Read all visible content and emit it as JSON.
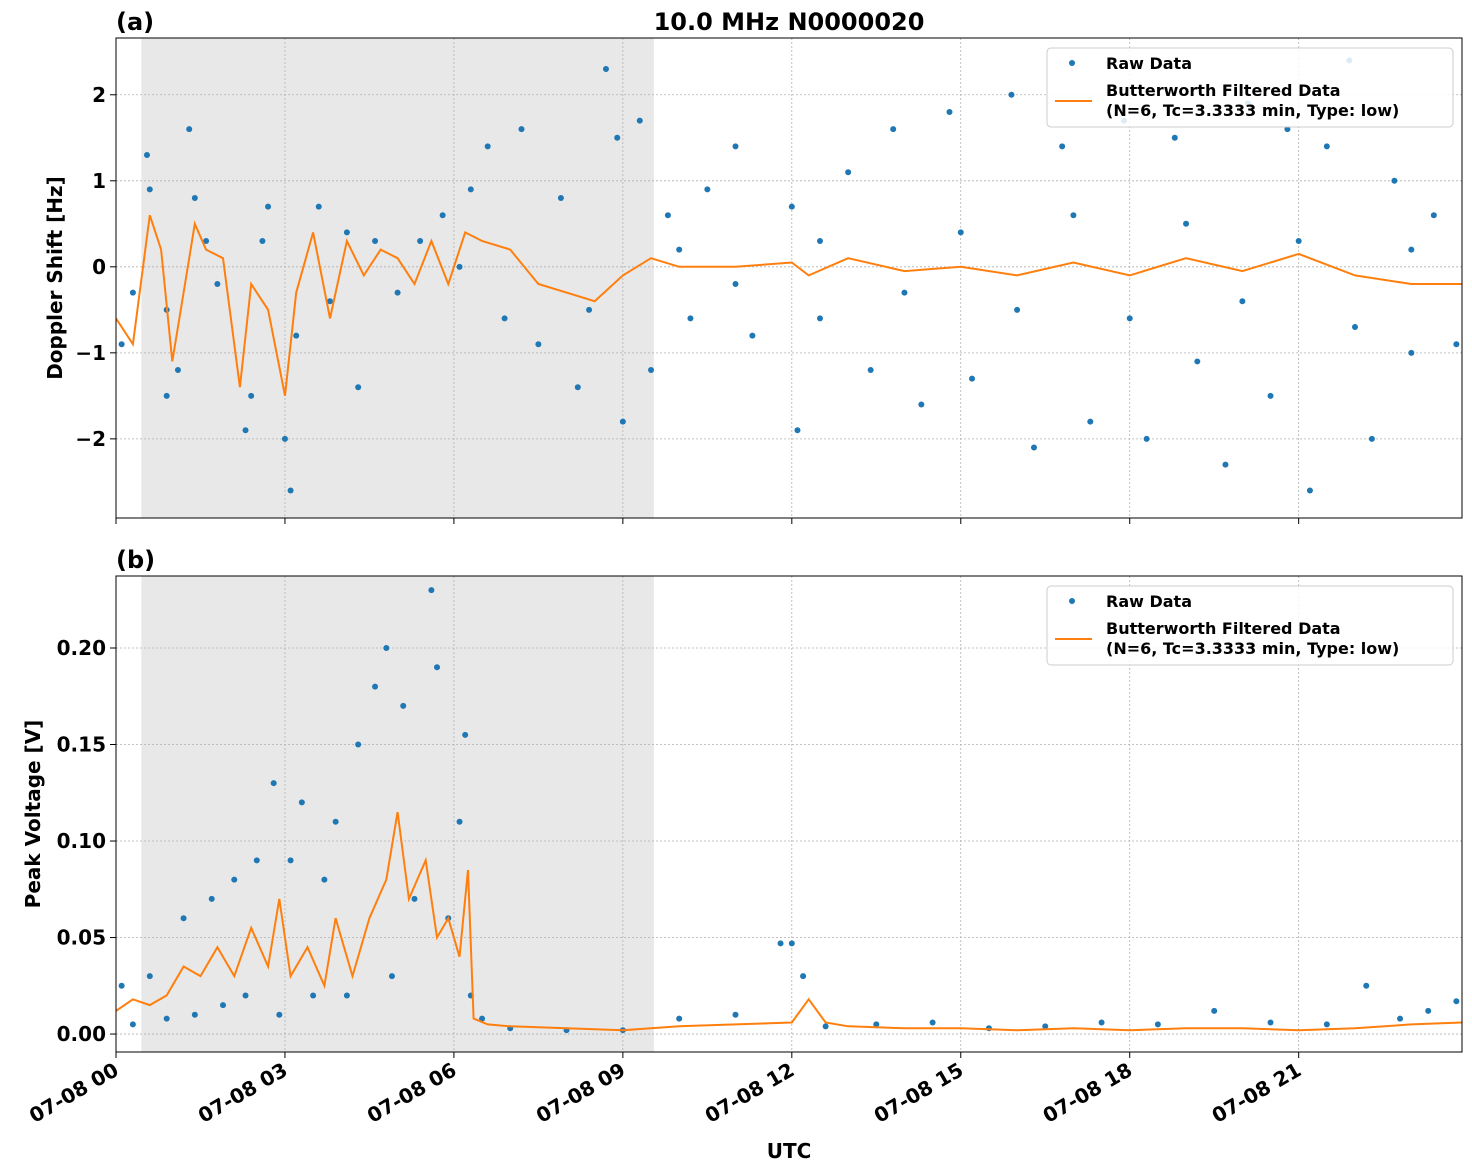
{
  "chart_data": [
    {
      "type": "scatter",
      "panel_label": "(a)",
      "title": "10.0 MHz N0000020",
      "ylabel": "Doppler Shift [Hz]",
      "xlim": [
        0,
        23.9
      ],
      "xticks": [
        0,
        3,
        6,
        9,
        12,
        15,
        18,
        21
      ],
      "ylim": [
        -2.92,
        2.66
      ],
      "yticks": [
        {
          "value": -2,
          "label": "−2"
        },
        {
          "value": -1,
          "label": "−1"
        },
        0,
        1,
        2
      ],
      "grid": true,
      "shade": [
        0.45,
        9.55
      ],
      "legend": "upper right",
      "series": [
        {
          "name": "Raw Data",
          "mode": "markers",
          "color": "#1f77b4",
          "x": [
            0.1,
            0.3,
            0.55,
            0.6,
            0.9,
            0.9,
            1.1,
            1.3,
            1.4,
            1.6,
            1.8,
            2.3,
            2.4,
            2.6,
            2.7,
            3.0,
            3.1,
            3.2,
            3.6,
            3.8,
            4.1,
            4.3,
            4.6,
            5.0,
            5.4,
            5.8,
            6.1,
            6.3,
            6.6,
            6.9,
            7.2,
            7.5,
            7.9,
            8.2,
            8.4,
            8.7,
            8.9,
            9.0,
            9.3,
            9.5,
            9.8,
            10.2,
            10.5,
            11.0,
            11.3,
            12.0,
            12.1,
            12.5,
            13.0,
            13.4,
            13.8,
            14.3,
            14.8,
            15.2,
            15.9,
            16.3,
            16.8,
            17.3,
            17.9,
            18.3,
            18.8,
            19.2,
            19.7,
            20.1,
            20.5,
            20.8,
            21.2,
            21.5,
            21.9,
            22.3,
            22.7,
            23.0,
            23.4,
            23.8,
            10,
            11,
            12.5,
            14,
            15,
            16,
            17,
            18,
            19,
            20,
            21,
            22,
            23
          ],
          "values": [
            -0.9,
            -0.3,
            1.3,
            0.9,
            -0.5,
            -1.5,
            -1.2,
            1.6,
            0.8,
            0.3,
            -0.2,
            -1.9,
            -1.5,
            0.3,
            0.7,
            -2.0,
            -2.6,
            -0.8,
            0.7,
            -0.4,
            0.4,
            -1.4,
            0.3,
            -0.3,
            0.3,
            0.6,
            0.0,
            0.9,
            1.4,
            -0.6,
            1.6,
            -0.9,
            0.8,
            -1.4,
            -0.5,
            2.3,
            1.5,
            -1.8,
            1.7,
            -1.2,
            0.6,
            -0.6,
            0.9,
            1.4,
            -0.8,
            0.7,
            -1.9,
            -0.6,
            1.1,
            -1.2,
            1.6,
            -1.6,
            1.8,
            -1.3,
            2.0,
            -2.1,
            1.4,
            -1.8,
            1.7,
            -2.0,
            1.5,
            -1.1,
            -2.3,
            1.9,
            -1.5,
            1.6,
            -2.6,
            1.4,
            2.4,
            -2.0,
            1.0,
            -1.0,
            0.6,
            -0.9,
            0.2,
            -0.2,
            0.3,
            -0.3,
            0.4,
            -0.5,
            0.6,
            -0.6,
            0.5,
            -0.4,
            0.3,
            -0.7,
            0.2
          ]
        },
        {
          "name": "Butterworth Filtered Data\n(N=6, Tc=3.3333 min, Type: low)",
          "mode": "line",
          "color": "#ff7f0e",
          "x": [
            0,
            0.3,
            0.6,
            0.8,
            1.0,
            1.2,
            1.4,
            1.6,
            1.9,
            2.2,
            2.4,
            2.7,
            3.0,
            3.2,
            3.5,
            3.8,
            4.1,
            4.4,
            4.7,
            5.0,
            5.3,
            5.6,
            5.9,
            6.2,
            6.5,
            7.0,
            7.5,
            8.0,
            8.5,
            9.0,
            9.5,
            10,
            11,
            12,
            12.3,
            13,
            14,
            15,
            16,
            17,
            18,
            19,
            20,
            21,
            22,
            23,
            23.9
          ],
          "values": [
            -0.6,
            -0.9,
            0.6,
            0.2,
            -1.1,
            -0.3,
            0.5,
            0.2,
            0.1,
            -1.4,
            -0.2,
            -0.5,
            -1.5,
            -0.3,
            0.4,
            -0.6,
            0.3,
            -0.1,
            0.2,
            0.1,
            -0.2,
            0.3,
            -0.2,
            0.4,
            0.3,
            0.2,
            -0.2,
            -0.3,
            -0.4,
            -0.1,
            0.1,
            0.0,
            0.0,
            0.05,
            -0.1,
            0.1,
            -0.05,
            0.0,
            -0.1,
            0.05,
            -0.1,
            0.1,
            -0.05,
            0.15,
            -0.1,
            -0.2,
            -0.2
          ]
        }
      ]
    },
    {
      "type": "scatter",
      "panel_label": "(b)",
      "ylabel": "Peak Voltage [V]",
      "xlabel": "UTC",
      "xlim": [
        0,
        23.9
      ],
      "xticks": [
        {
          "value": 0,
          "label": "07-08 00"
        },
        {
          "value": 3,
          "label": "07-08 03"
        },
        {
          "value": 6,
          "label": "07-08 06"
        },
        {
          "value": 9,
          "label": "07-08 09"
        },
        {
          "value": 12,
          "label": "07-08 12"
        },
        {
          "value": 15,
          "label": "07-08 15"
        },
        {
          "value": 18,
          "label": "07-08 18"
        },
        {
          "value": 21,
          "label": "07-08 21"
        }
      ],
      "ylim": [
        -0.0093,
        0.2373
      ],
      "yticks": [
        {
          "value": 0,
          "label": "0.00"
        },
        {
          "value": 0.05,
          "label": "0.05"
        },
        {
          "value": 0.1,
          "label": "0.10"
        },
        {
          "value": 0.15,
          "label": "0.15"
        },
        {
          "value": 0.2,
          "label": "0.20"
        }
      ],
      "grid": true,
      "shade": [
        0.45,
        9.55
      ],
      "legend": "upper right",
      "series": [
        {
          "name": "Raw Data",
          "mode": "markers",
          "color": "#1f77b4",
          "x": [
            0.1,
            0.3,
            0.6,
            0.9,
            1.2,
            1.4,
            1.7,
            1.9,
            2.1,
            2.3,
            2.5,
            2.8,
            2.9,
            3.1,
            3.3,
            3.5,
            3.7,
            3.9,
            4.1,
            4.3,
            4.6,
            4.8,
            4.9,
            5.1,
            5.3,
            5.6,
            5.7,
            5.9,
            6.1,
            6.2,
            6.3,
            6.5,
            7,
            8,
            9,
            10,
            11,
            11.8,
            12,
            12.2,
            12.6,
            13.5,
            14.5,
            15.5,
            16.5,
            17.5,
            18.5,
            19.5,
            20.5,
            21.5,
            22.2,
            22.8,
            23.3,
            23.8
          ],
          "values": [
            0.025,
            0.005,
            0.03,
            0.008,
            0.06,
            0.01,
            0.07,
            0.015,
            0.08,
            0.02,
            0.09,
            0.13,
            0.01,
            0.09,
            0.12,
            0.02,
            0.08,
            0.11,
            0.02,
            0.15,
            0.18,
            0.2,
            0.03,
            0.17,
            0.07,
            0.23,
            0.19,
            0.06,
            0.11,
            0.155,
            0.02,
            0.008,
            0.003,
            0.002,
            0.002,
            0.008,
            0.01,
            0.047,
            0.047,
            0.03,
            0.004,
            0.005,
            0.006,
            0.003,
            0.004,
            0.006,
            0.005,
            0.012,
            0.006,
            0.005,
            0.025,
            0.008,
            0.012,
            0.017
          ]
        },
        {
          "name": "Butterworth Filtered Data\n(N=6, Tc=3.3333 min, Type: low)",
          "mode": "line",
          "color": "#ff7f0e",
          "x": [
            0,
            0.3,
            0.6,
            0.9,
            1.2,
            1.5,
            1.8,
            2.1,
            2.4,
            2.7,
            2.9,
            3.1,
            3.4,
            3.7,
            3.9,
            4.2,
            4.5,
            4.8,
            5.0,
            5.2,
            5.5,
            5.7,
            5.9,
            6.1,
            6.25,
            6.35,
            6.6,
            7,
            8,
            9,
            9.5,
            10,
            11,
            12,
            12.3,
            12.6,
            13,
            14,
            15,
            16,
            17,
            18,
            19,
            20,
            21,
            22,
            23,
            23.9
          ],
          "values": [
            0.012,
            0.018,
            0.015,
            0.02,
            0.035,
            0.03,
            0.045,
            0.03,
            0.055,
            0.035,
            0.07,
            0.03,
            0.045,
            0.025,
            0.06,
            0.03,
            0.06,
            0.08,
            0.115,
            0.07,
            0.09,
            0.05,
            0.06,
            0.04,
            0.085,
            0.008,
            0.005,
            0.004,
            0.003,
            0.002,
            0.003,
            0.004,
            0.005,
            0.006,
            0.018,
            0.006,
            0.004,
            0.003,
            0.003,
            0.002,
            0.003,
            0.002,
            0.003,
            0.003,
            0.002,
            0.003,
            0.005,
            0.006
          ]
        }
      ]
    }
  ]
}
